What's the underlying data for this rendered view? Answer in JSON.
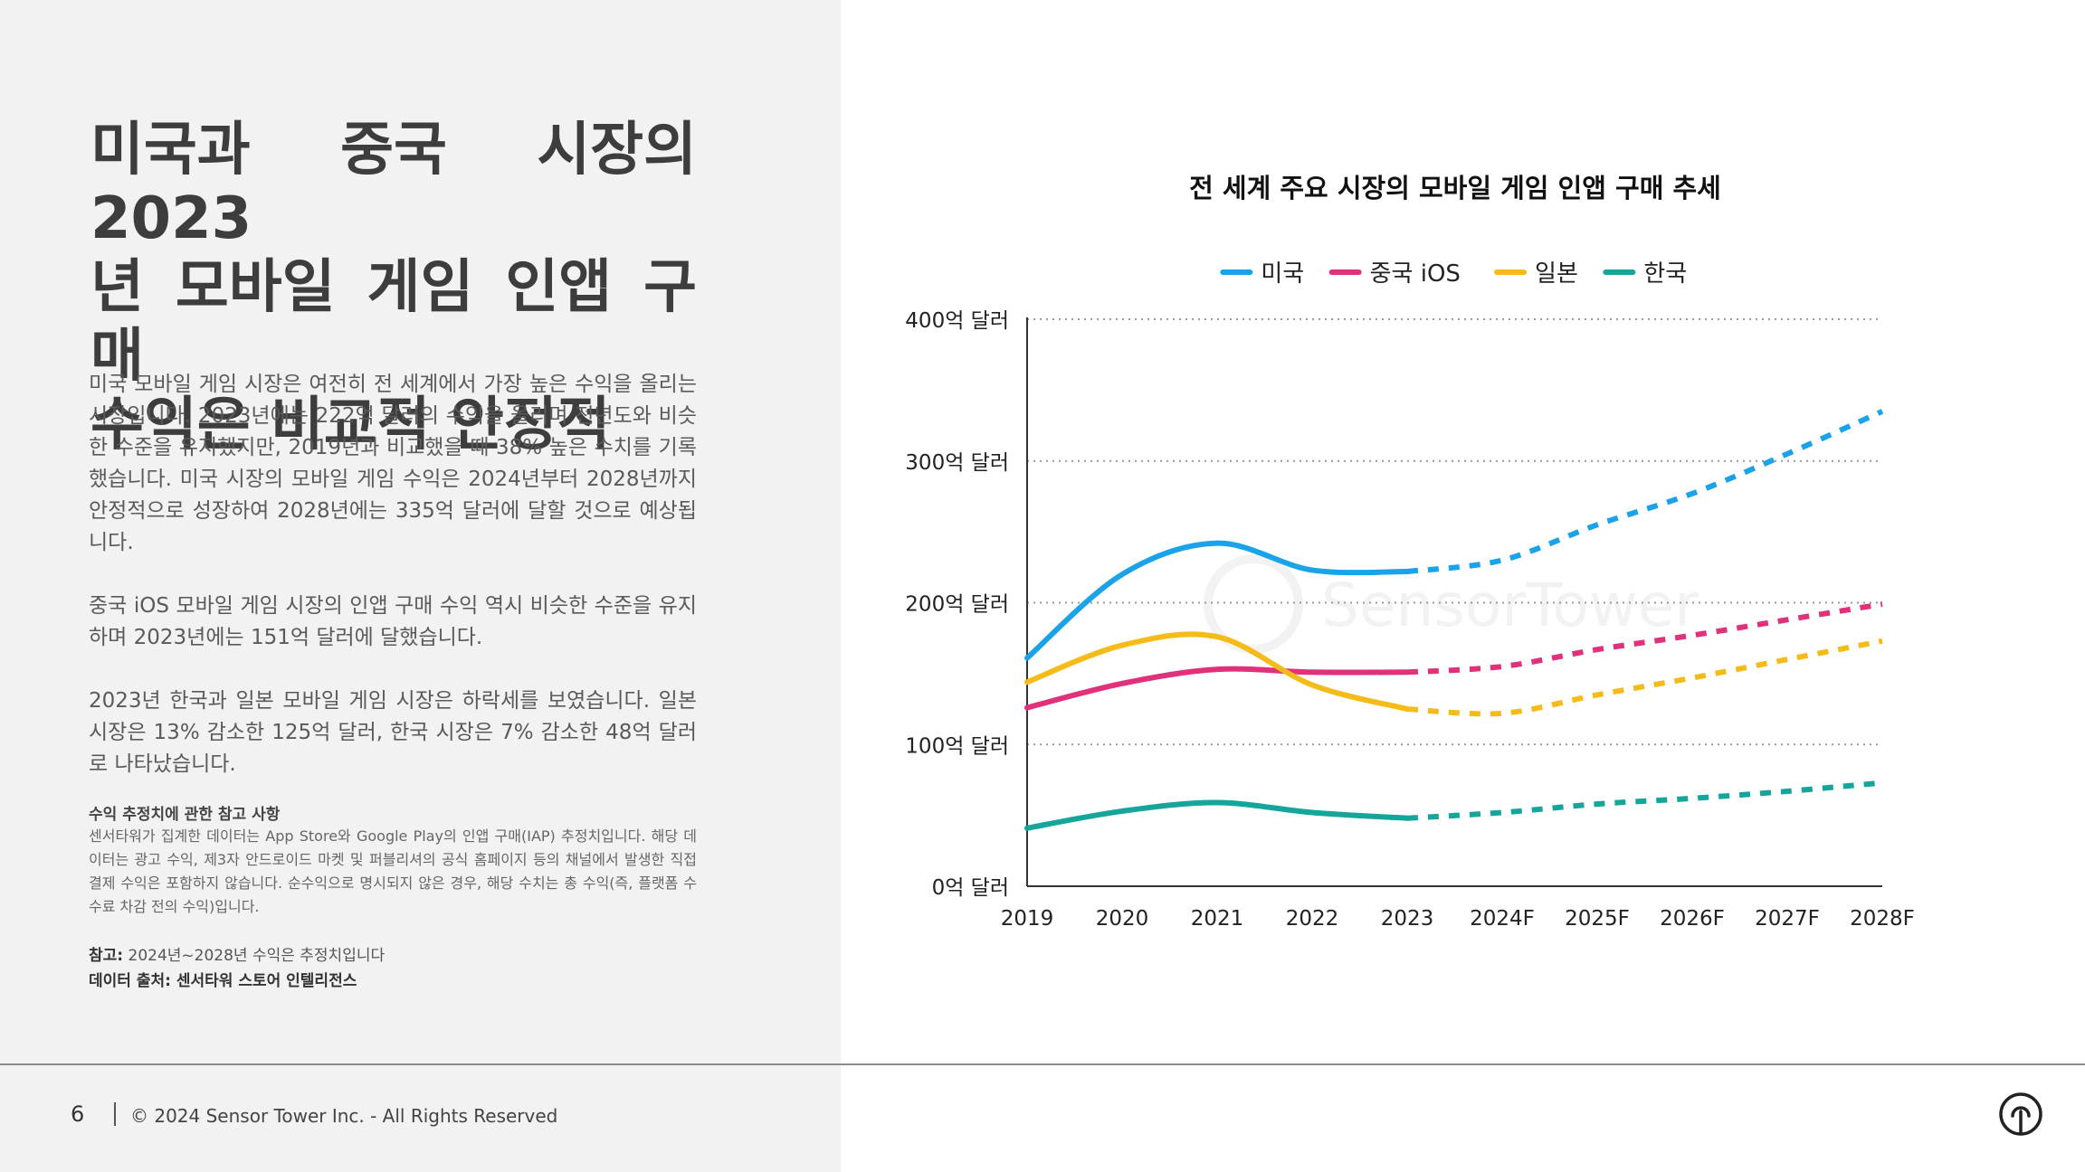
{
  "left": {
    "title_lines": [
      "미국과 중국 시장의 2023",
      "년 모바일 게임 인앱 구매",
      "수익은 비교적 안정적"
    ],
    "paragraph1": "미국 모바일 게임 시장은 여전히 전 세계에서 가장 높은 수익을 올리는 시장입니다. 2023년에는 222억 달러의 수익을 올리며 전년도와 비슷한 수준을 유지했지만, 2019년과 비교했을 때 38% 높은 수치를 기록했습니다. 미국 시장의 모바일 게임 수익은 2024년부터 2028년까지 안정적으로 성장하여 2028년에는 335억 달러에 달할 것으로 예상됩니다.",
    "paragraph2": "중국 iOS 모바일 게임 시장의 인앱 구매 수익 역시 비슷한 수준을 유지하며 2023년에는 151억 달러에 달했습니다.",
    "paragraph3": "2023년 한국과 일본 모바일 게임 시장은 하락세를 보였습니다. 일본 시장은 13% 감소한 125억 달러, 한국 시장은 7% 감소한 48억 달러로 나타났습니다.",
    "notes_heading": "수익 추정치에 관한 참고 사항",
    "notes_body": "센서타워가 집계한 데이터는 App Store와 Google Play의 인앱 구매(IAP) 추정치입니다. 해당 데이터는 광고 수익, 제3자 안드로이드 마켓 및 퍼블리셔의 공식 홈페이지 등의 채널에서 발생한 직접 결제 수익은 포함하지 않습니다. 순수익으로 명시되지 않은 경우, 해당 수치는 총 수익(즉, 플랫폼 수수료 차감 전의 수익)입니다.",
    "ref_label": "참고:",
    "ref_text": " 2024년~2028년 수익은 추정치입니다",
    "source": "데이터 출처: 센서타워 스토어 인텔리전스"
  },
  "footer": {
    "page_number": "6",
    "copyright": "© 2024 Sensor Tower Inc. - All Rights Reserved"
  },
  "watermark": "SensorTower",
  "chart_data": {
    "type": "line",
    "title": "전 세계 주요 시장의 모바일 게임 인앱 구매 추세",
    "x": [
      "2019",
      "2020",
      "2021",
      "2022",
      "2023",
      "2024F",
      "2025F",
      "2026F",
      "2027F",
      "2028F"
    ],
    "forecast_start_index": 4,
    "y_ticks": [
      {
        "value": 0,
        "label": "0억 달러"
      },
      {
        "value": 100,
        "label": "100억 달러"
      },
      {
        "value": 200,
        "label": "200억 달러"
      },
      {
        "value": 300,
        "label": "300억 달러"
      },
      {
        "value": 400,
        "label": "400억 달러"
      }
    ],
    "ylim": [
      0,
      400
    ],
    "grid": true,
    "legend_position": "top-center",
    "series": [
      {
        "name": "미국",
        "color": "#1aa3e8",
        "values": [
          161,
          220,
          242,
          223,
          222,
          230,
          255,
          277,
          305,
          335
        ]
      },
      {
        "name": "중국 iOS",
        "color": "#e0317a",
        "values": [
          126,
          143,
          153,
          151,
          151,
          155,
          167,
          177,
          188,
          199
        ]
      },
      {
        "name": "일본",
        "color": "#f5bb18",
        "values": [
          144,
          170,
          176,
          142,
          125,
          122,
          135,
          147,
          160,
          173
        ]
      },
      {
        "name": "한국",
        "color": "#16a59a",
        "values": [
          41,
          53,
          59,
          52,
          48,
          52,
          58,
          62,
          67,
          73
        ]
      }
    ]
  }
}
